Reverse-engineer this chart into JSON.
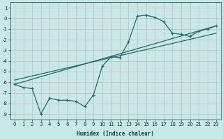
{
  "xlabel": "Humidex (Indice chaleur)",
  "background_color": "#c8e8e8",
  "grid_color": "#c8b8b8",
  "line_color": "#1a6e64",
  "xlim": [
    -0.5,
    23.5
  ],
  "ylim": [
    -9.5,
    1.5
  ],
  "yticks": [
    1,
    0,
    -1,
    -2,
    -3,
    -4,
    -5,
    -6,
    -7,
    -8,
    -9
  ],
  "xticks": [
    0,
    1,
    2,
    3,
    4,
    5,
    6,
    7,
    8,
    9,
    10,
    11,
    12,
    13,
    14,
    15,
    16,
    17,
    18,
    19,
    20,
    21,
    22,
    23
  ],
  "series_main_x": [
    0,
    1,
    2,
    3,
    4,
    5,
    6,
    7,
    8,
    9,
    10,
    11,
    12,
    13,
    14,
    15,
    16,
    17,
    18,
    19,
    20,
    21,
    22,
    23
  ],
  "series_main_y": [
    -6.2,
    -6.5,
    -6.6,
    -9.0,
    -7.5,
    -7.7,
    -7.7,
    -7.8,
    -8.3,
    -7.2,
    -4.5,
    -3.6,
    -3.7,
    -2.2,
    0.2,
    0.3,
    0.1,
    -0.3,
    -1.4,
    -1.5,
    -1.7,
    -1.2,
    -1.0,
    -0.7
  ],
  "line1_x": [
    0,
    23
  ],
  "line1_y": [
    -6.2,
    -0.7
  ],
  "line2_x": [
    0,
    23
  ],
  "line2_y": [
    -5.8,
    -1.4
  ]
}
